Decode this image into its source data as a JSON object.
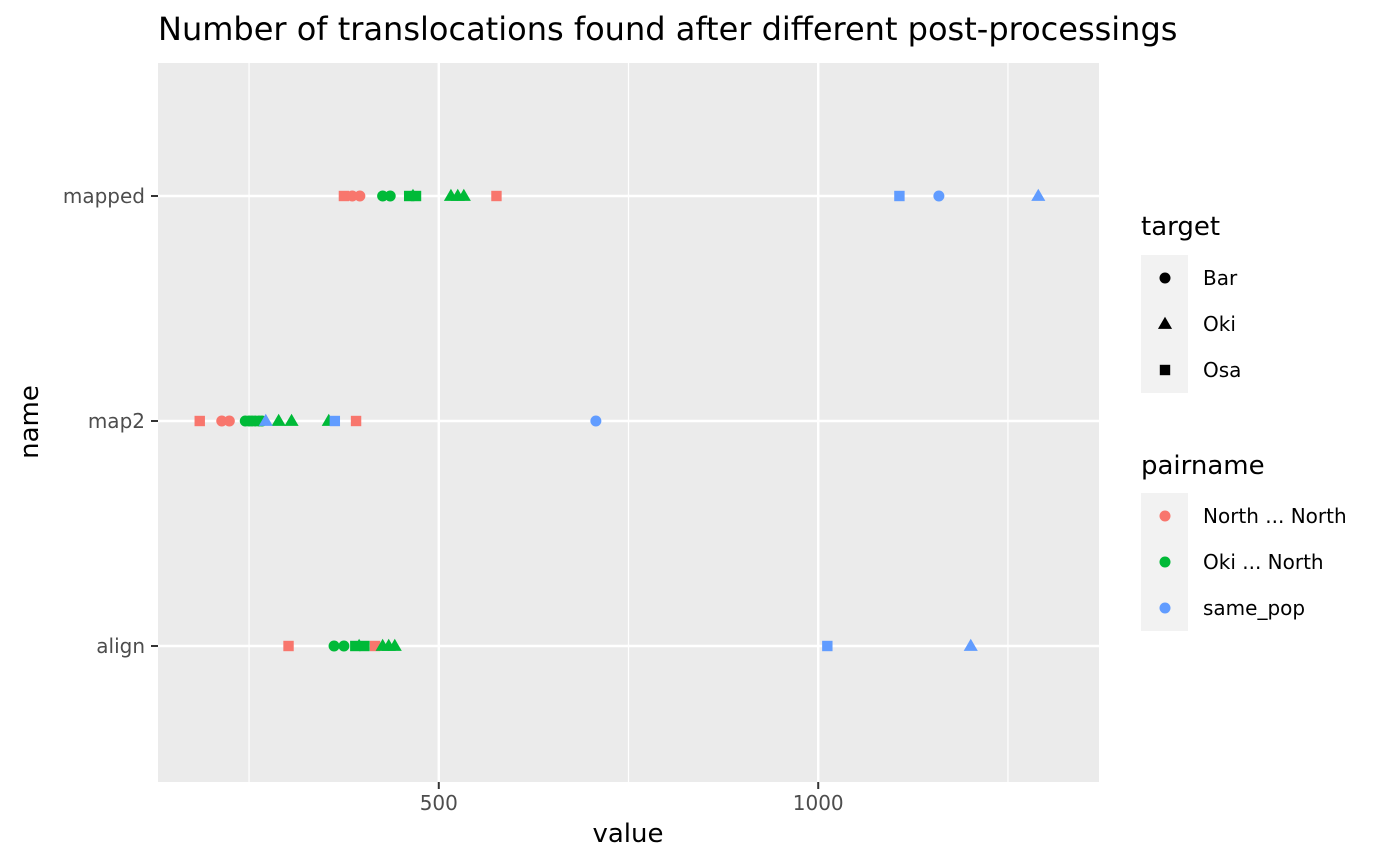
{
  "chart_data": {
    "type": "scatter",
    "title": "Number of translocations found after different post-processings",
    "xlabel": "value",
    "ylabel": "name",
    "xlim": [
      130,
      1370
    ],
    "x_ticks": [
      500,
      1000
    ],
    "x_minor_ticks": [
      250,
      750,
      1250
    ],
    "categories": [
      "align",
      "map2",
      "mapped"
    ],
    "grid": true,
    "legend_position": "right",
    "shape_legend": {
      "title": "target",
      "entries": [
        {
          "label": "Bar",
          "shape": "circle"
        },
        {
          "label": "Oki",
          "shape": "triangle"
        },
        {
          "label": "Osa",
          "shape": "square"
        }
      ]
    },
    "color_legend": {
      "title": "pairname",
      "entries": [
        {
          "label": "North ... North",
          "color": "#F8766D"
        },
        {
          "label": "Oki ... North",
          "color": "#00BA38"
        },
        {
          "label": "same_pop",
          "color": "#619CFF"
        }
      ]
    },
    "series": [
      {
        "name": "North ... North",
        "color": "#F8766D",
        "points": [
          {
            "y": "mapped",
            "x": 375,
            "target": "Osa"
          },
          {
            "y": "mapped",
            "x": 386,
            "target": "Bar"
          },
          {
            "y": "mapped",
            "x": 396,
            "target": "Bar"
          },
          {
            "y": "mapped",
            "x": 576,
            "target": "Osa"
          },
          {
            "y": "map2",
            "x": 185,
            "target": "Osa"
          },
          {
            "y": "map2",
            "x": 214,
            "target": "Bar"
          },
          {
            "y": "map2",
            "x": 224,
            "target": "Bar"
          },
          {
            "y": "map2",
            "x": 391,
            "target": "Osa"
          },
          {
            "y": "align",
            "x": 302,
            "target": "Osa"
          },
          {
            "y": "align",
            "x": 416,
            "target": "Osa"
          }
        ]
      },
      {
        "name": "Oki ... North",
        "color": "#00BA38",
        "points": [
          {
            "y": "mapped",
            "x": 426,
            "target": "Bar"
          },
          {
            "y": "mapped",
            "x": 436,
            "target": "Bar"
          },
          {
            "y": "mapped",
            "x": 461,
            "target": "Osa"
          },
          {
            "y": "mapped",
            "x": 466,
            "target": "Oki"
          },
          {
            "y": "mapped",
            "x": 470,
            "target": "Osa"
          },
          {
            "y": "mapped",
            "x": 516,
            "target": "Oki"
          },
          {
            "y": "mapped",
            "x": 525,
            "target": "Oki"
          },
          {
            "y": "mapped",
            "x": 533,
            "target": "Oki"
          },
          {
            "y": "map2",
            "x": 245,
            "target": "Bar"
          },
          {
            "y": "map2",
            "x": 250,
            "target": "Bar"
          },
          {
            "y": "map2",
            "x": 254,
            "target": "Bar"
          },
          {
            "y": "map2",
            "x": 258,
            "target": "Bar"
          },
          {
            "y": "map2",
            "x": 263,
            "target": "Bar"
          },
          {
            "y": "map2",
            "x": 267,
            "target": "Bar"
          },
          {
            "y": "map2",
            "x": 289,
            "target": "Oki"
          },
          {
            "y": "map2",
            "x": 306,
            "target": "Oki"
          },
          {
            "y": "map2",
            "x": 355,
            "target": "Oki"
          },
          {
            "y": "align",
            "x": 362,
            "target": "Bar"
          },
          {
            "y": "align",
            "x": 375,
            "target": "Bar"
          },
          {
            "y": "align",
            "x": 390,
            "target": "Osa"
          },
          {
            "y": "align",
            "x": 395,
            "target": "Oki"
          },
          {
            "y": "align",
            "x": 402,
            "target": "Osa"
          },
          {
            "y": "align",
            "x": 426,
            "target": "Oki"
          },
          {
            "y": "align",
            "x": 434,
            "target": "Oki"
          },
          {
            "y": "align",
            "x": 442,
            "target": "Oki"
          }
        ]
      },
      {
        "name": "same_pop",
        "color": "#619CFF",
        "points": [
          {
            "y": "mapped",
            "x": 1107,
            "target": "Osa"
          },
          {
            "y": "mapped",
            "x": 1159,
            "target": "Bar"
          },
          {
            "y": "mapped",
            "x": 1290,
            "target": "Oki"
          },
          {
            "y": "map2",
            "x": 272,
            "target": "Oki"
          },
          {
            "y": "map2",
            "x": 363,
            "target": "Osa"
          },
          {
            "y": "map2",
            "x": 707,
            "target": "Bar"
          },
          {
            "y": "align",
            "x": 1012,
            "target": "Osa"
          },
          {
            "y": "align",
            "x": 1201,
            "target": "Oki"
          }
        ]
      }
    ]
  }
}
